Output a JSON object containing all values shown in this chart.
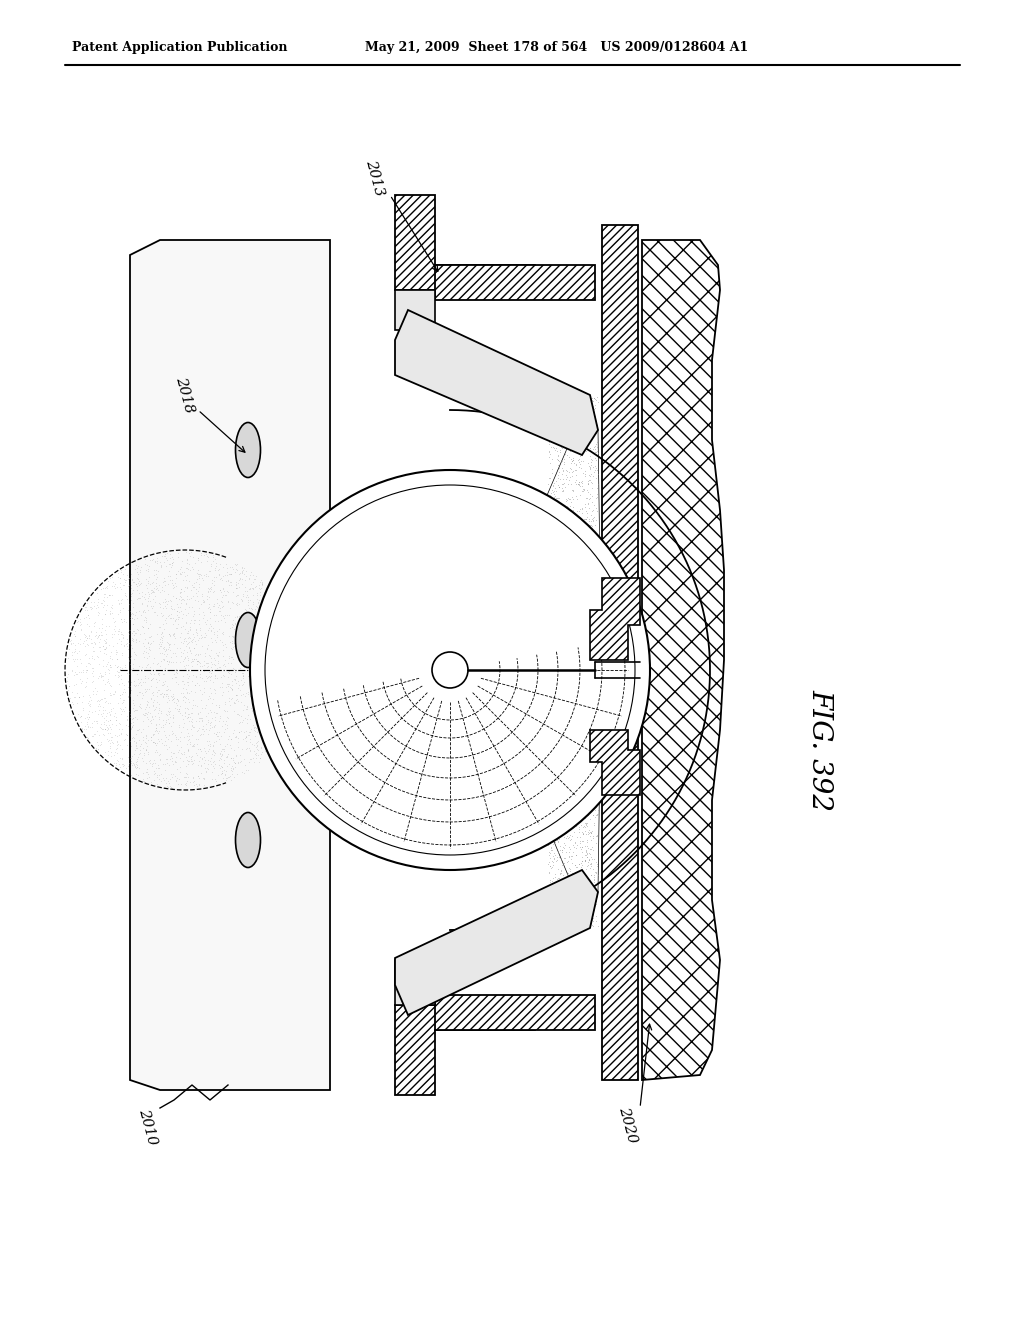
{
  "bg_color": "#ffffff",
  "line_color": "#000000",
  "header_left": "Patent Application Publication",
  "header_right": "May 21, 2009  Sheet 178 of 564   US 2009/0128604 A1",
  "fig_label": "FIG. 392",
  "label_2013": "2013",
  "label_2018": "2018",
  "label_2020": "2020",
  "label_2010": "2010"
}
